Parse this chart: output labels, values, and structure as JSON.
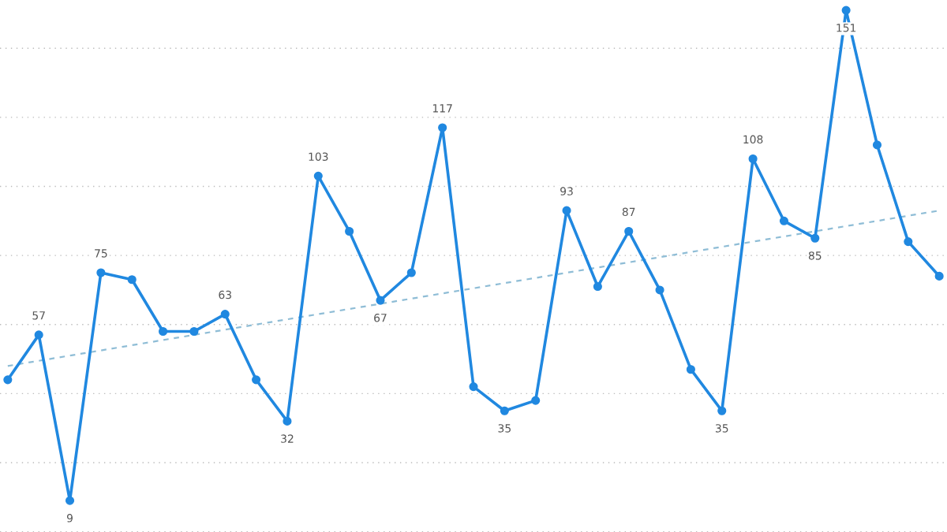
{
  "chart_data": {
    "type": "line",
    "categories": [
      null,
      null,
      null,
      null,
      null,
      null,
      null,
      null,
      null,
      null,
      null,
      null,
      null,
      null,
      null,
      null,
      null,
      null,
      null,
      null,
      null,
      null,
      null,
      null,
      null,
      null,
      null,
      null,
      null,
      null,
      null
    ],
    "series": [
      {
        "color": "#2088e0",
        "marker": "circle",
        "line_style": "solid",
        "values": [
          44,
          57,
          9,
          75,
          73,
          58,
          58,
          63,
          44,
          32,
          103,
          87,
          67,
          75,
          117,
          42,
          35,
          38,
          93,
          71,
          87,
          70,
          47,
          35,
          108,
          90,
          85,
          151,
          112,
          84,
          74
        ],
        "value_labels": [
          null,
          "57",
          "9",
          "75",
          null,
          null,
          null,
          "63",
          null,
          "32",
          "103",
          null,
          "67",
          null,
          "117",
          null,
          "35",
          null,
          "93",
          null,
          "87",
          null,
          null,
          "35",
          "108",
          null,
          "85",
          "151",
          null,
          null,
          null
        ]
      },
      {
        "type": "line",
        "color": "#8fbdd6",
        "marker": "none",
        "line_style": "dashed",
        "values": [
          48,
          null,
          null,
          null,
          null,
          null,
          null,
          null,
          null,
          null,
          null,
          null,
          null,
          null,
          null,
          null,
          null,
          null,
          null,
          null,
          null,
          null,
          null,
          null,
          null,
          null,
          null,
          null,
          null,
          null,
          93
        ]
      }
    ],
    "grid": "y",
    "legend": false
  }
}
